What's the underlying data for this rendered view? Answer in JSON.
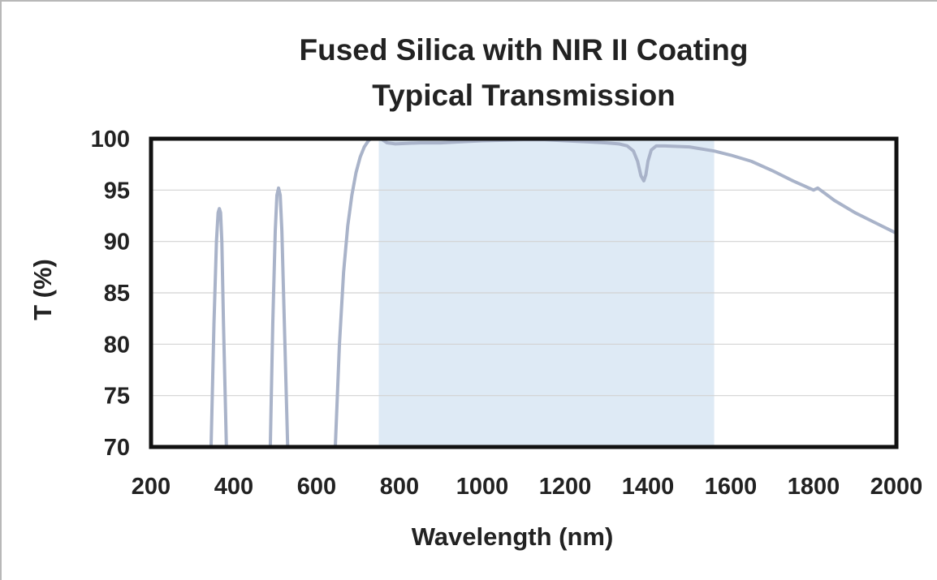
{
  "chart_data": {
    "type": "line",
    "title": "Fused Silica with NIR II Coating",
    "subtitle": "Typical Transmission",
    "xlabel": "Wavelength (nm)",
    "ylabel": "T (%)",
    "xlim": [
      200,
      2000
    ],
    "ylim": [
      70,
      100
    ],
    "xticks": [
      200,
      400,
      600,
      800,
      1000,
      1200,
      1400,
      1600,
      1800,
      2000
    ],
    "yticks": [
      70,
      75,
      80,
      85,
      90,
      95,
      100
    ],
    "grid": "horizontal",
    "legend": "none",
    "shaded_band": {
      "x_start": 750,
      "x_end": 1560,
      "color": "#deeaf5"
    },
    "line_color": "#a9b3c9",
    "series": [
      {
        "x": [
          345,
          352,
          358,
          362,
          365,
          368,
          371,
          375,
          382
        ],
        "y": [
          70,
          82,
          90,
          92.8,
          93.2,
          92.8,
          90,
          82,
          70
        ]
      },
      {
        "x": [
          488,
          494,
          500,
          504,
          508,
          512,
          516,
          522,
          530
        ],
        "y": [
          70,
          82,
          91,
          94.5,
          95.2,
          94.5,
          91,
          82,
          70
        ]
      },
      {
        "x": [
          645,
          655,
          665,
          675,
          685,
          695,
          705,
          715,
          725,
          735,
          745,
          755,
          770,
          790,
          850,
          900,
          950,
          1000,
          1100,
          1150,
          1200,
          1250,
          1300,
          1330,
          1350,
          1365,
          1375,
          1383,
          1390,
          1395,
          1400,
          1408,
          1420,
          1440,
          1500,
          1560,
          1600,
          1650,
          1700,
          1750,
          1800,
          1810,
          1850,
          1900,
          1950,
          2000
        ],
        "y": [
          70,
          80,
          87,
          91.5,
          94.5,
          96.7,
          98.2,
          99.2,
          99.8,
          100.1,
          100.2,
          100.0,
          99.6,
          99.5,
          99.6,
          99.6,
          99.7,
          99.8,
          99.9,
          99.9,
          99.8,
          99.7,
          99.6,
          99.5,
          99.3,
          98.8,
          97.8,
          96.4,
          95.9,
          96.5,
          97.8,
          98.9,
          99.3,
          99.3,
          99.2,
          98.8,
          98.4,
          97.8,
          96.9,
          95.9,
          95.0,
          95.2,
          94.0,
          92.8,
          91.8,
          90.8
        ]
      }
    ]
  }
}
